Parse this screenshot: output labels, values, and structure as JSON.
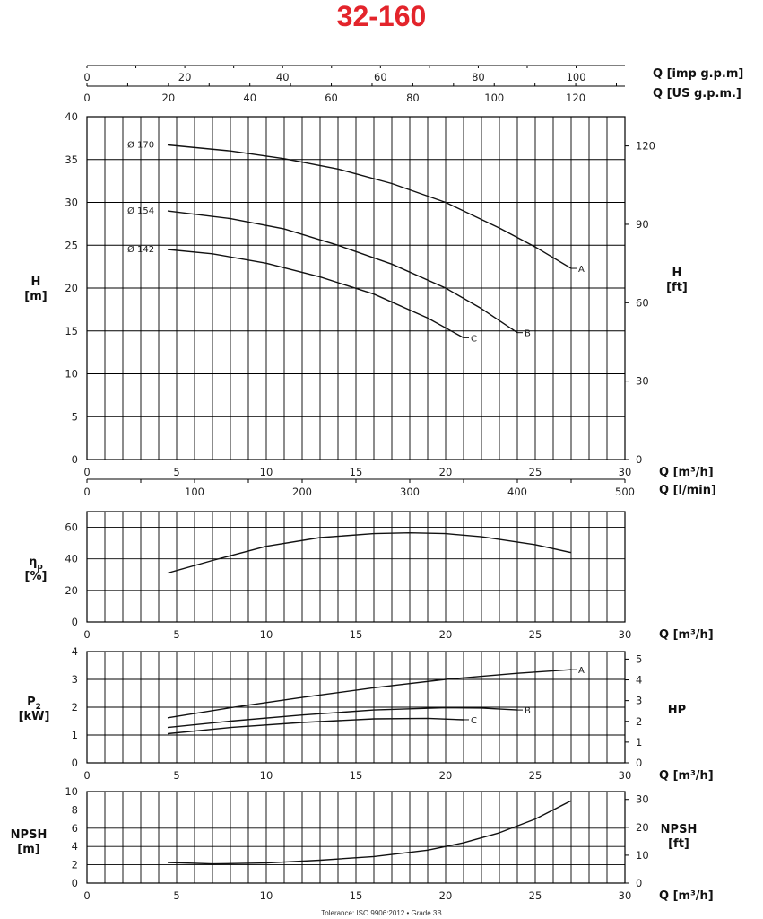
{
  "title": "32-160",
  "title_color": "#e3242b",
  "tolerance": "Tolerance: ISO 9906:2012 • Grade 3B",
  "axes": {
    "q_imp_label": "Q [imp g.p.m]",
    "q_us_label": "Q [US g.p.m.]",
    "q_m3h_label": "Q [m³/h]",
    "q_lmin_label": "Q [l/min]",
    "h_m_label": [
      "H",
      "[m]"
    ],
    "h_ft_label": [
      "H",
      "[ft]"
    ],
    "eff_label": [
      "η",
      "p",
      "[%]"
    ],
    "p2_label": [
      "P",
      "2",
      "[kW]"
    ],
    "hp_label": "HP",
    "npsh_m_label": [
      "NPSH",
      "[m]"
    ],
    "npsh_ft_label": [
      "NPSH",
      "[ft]"
    ],
    "q_m3h_ticks": [
      "0",
      "5",
      "10",
      "15",
      "20",
      "25",
      "30"
    ],
    "q_lmin_ticks": [
      "0",
      "100",
      "200",
      "300",
      "400",
      "500"
    ],
    "q_imp_ticks": [
      "0",
      "20",
      "40",
      "60",
      "80",
      "100"
    ],
    "q_us_ticks": [
      "0",
      "20",
      "40",
      "60",
      "80",
      "100",
      "120"
    ]
  },
  "chart_data": [
    {
      "type": "line",
      "ylabel": "H [m]",
      "xlabel": "Q [m³/h]",
      "xlim": [
        0,
        30
      ],
      "ylim": [
        0,
        40
      ],
      "yticks": [
        0,
        5,
        10,
        15,
        20,
        25,
        30,
        35,
        40
      ],
      "y2label": "H [ft]",
      "y2ticks": [
        0,
        30,
        60,
        90,
        120
      ],
      "series": [
        {
          "name": "Ø 170",
          "end_label": "A",
          "x": [
            4.5,
            8,
            11,
            14,
            17,
            20,
            23,
            25,
            27
          ],
          "y": [
            36.7,
            36,
            35.1,
            33.9,
            32.2,
            30,
            27,
            24.8,
            22.3
          ]
        },
        {
          "name": "Ø 154",
          "end_label": "B",
          "x": [
            4.5,
            8,
            11,
            14,
            17,
            20,
            22,
            24
          ],
          "y": [
            29,
            28.1,
            26.9,
            25,
            22.8,
            20,
            17.6,
            14.8
          ]
        },
        {
          "name": "Ø 142",
          "end_label": "C",
          "x": [
            4.5,
            7,
            10,
            13,
            16,
            19,
            21
          ],
          "y": [
            24.5,
            24,
            22.9,
            21.3,
            19.3,
            16.5,
            14.2
          ]
        }
      ]
    },
    {
      "type": "line",
      "ylabel": "ηp [%]",
      "xlabel": "Q [m³/h]",
      "xlim": [
        0,
        30
      ],
      "ylim": [
        0,
        70
      ],
      "yticks": [
        0,
        20,
        40,
        60
      ],
      "series": [
        {
          "x": [
            4.5,
            7,
            10,
            13,
            16,
            18,
            20,
            22,
            25,
            27
          ],
          "y": [
            31,
            39,
            48,
            53.5,
            56,
            56.5,
            56,
            54,
            49,
            44
          ]
        }
      ]
    },
    {
      "type": "line",
      "ylabel": "P2 [kW]",
      "xlabel": "Q [m³/h]",
      "xlim": [
        0,
        30
      ],
      "ylim": [
        0,
        4
      ],
      "yticks": [
        0,
        1,
        2,
        3,
        4
      ],
      "y2label": "HP",
      "y2ticks": [
        0,
        1,
        2,
        3,
        4,
        5
      ],
      "series": [
        {
          "end_label": "A",
          "x": [
            4.5,
            8,
            12,
            16,
            20,
            24,
            27
          ],
          "y": [
            1.62,
            1.98,
            2.35,
            2.7,
            3.0,
            3.22,
            3.35
          ]
        },
        {
          "end_label": "B",
          "x": [
            4.5,
            8,
            12,
            16,
            20,
            22,
            24
          ],
          "y": [
            1.27,
            1.5,
            1.72,
            1.9,
            1.98,
            1.97,
            1.9
          ]
        },
        {
          "end_label": "C",
          "x": [
            4.5,
            8,
            12,
            16,
            19,
            21
          ],
          "y": [
            1.05,
            1.27,
            1.45,
            1.58,
            1.6,
            1.55
          ]
        }
      ]
    },
    {
      "type": "line",
      "ylabel": "NPSH [m]",
      "xlabel": "Q [m³/h]",
      "xlim": [
        0,
        30
      ],
      "ylim": [
        0,
        10
      ],
      "yticks": [
        0,
        2,
        4,
        6,
        8,
        10
      ],
      "y2label": "NPSH [ft]",
      "y2ticks": [
        0,
        10,
        20,
        30
      ],
      "series": [
        {
          "x": [
            4.5,
            7,
            10,
            13,
            16,
            19,
            21,
            23,
            25,
            27
          ],
          "y": [
            2.25,
            2.1,
            2.2,
            2.5,
            2.9,
            3.6,
            4.4,
            5.5,
            7.0,
            9.0
          ]
        }
      ]
    }
  ]
}
